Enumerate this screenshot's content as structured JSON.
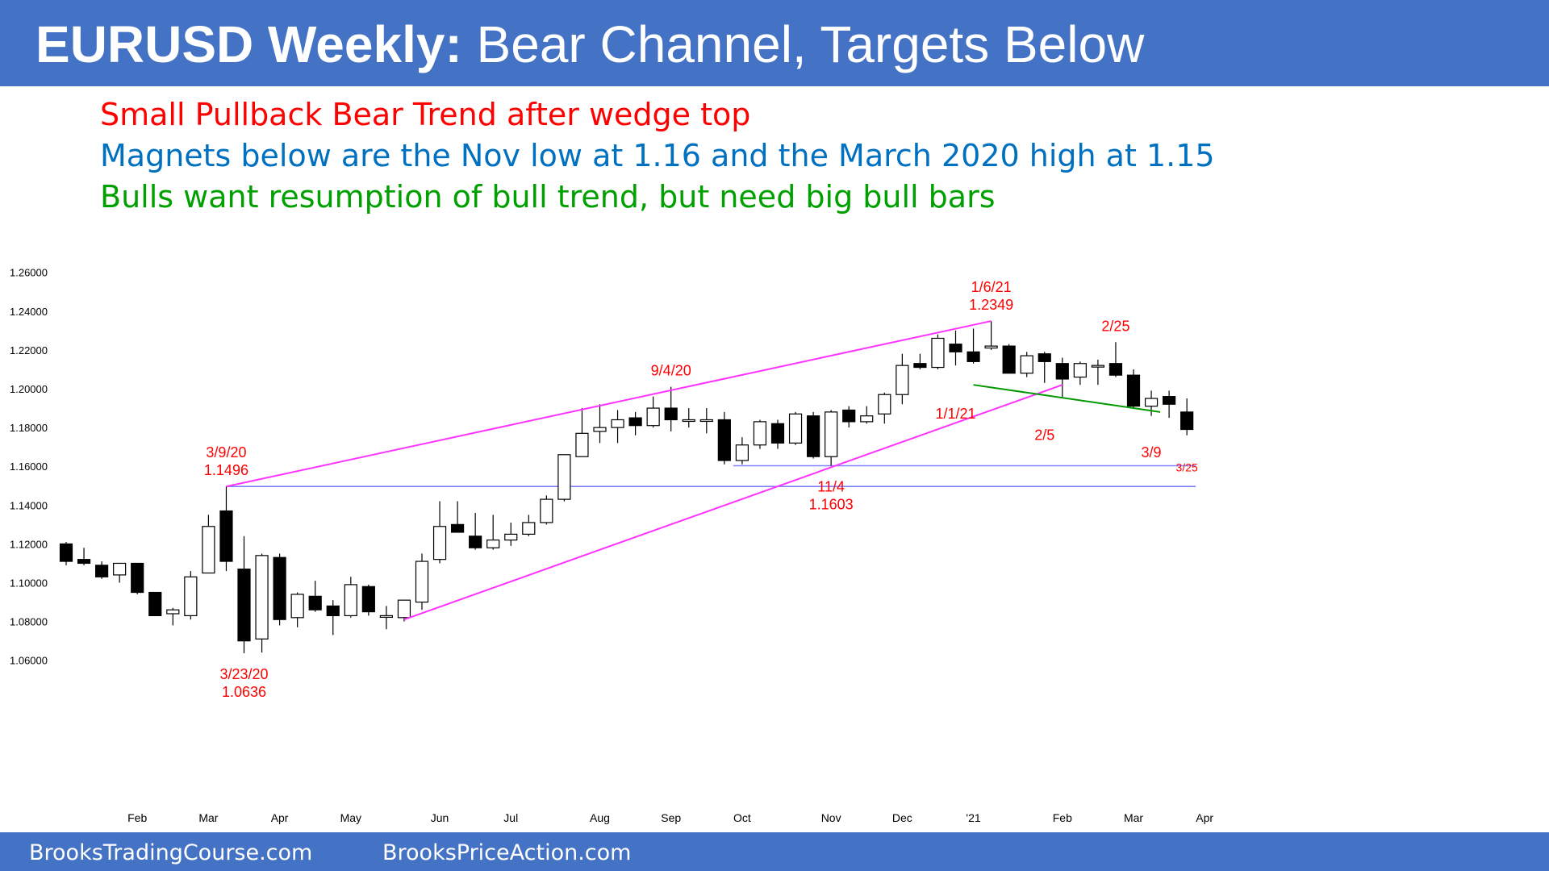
{
  "header": {
    "title_bold": "EURUSD Weekly:",
    "title_rest": " Bear Channel, Targets Below"
  },
  "subtitles": [
    {
      "text": "Small Pullback Bear Trend after wedge top",
      "color": "#ff0000"
    },
    {
      "text": "Magnets below are the Nov low at 1.16 and the March 2020 high at 1.15",
      "color": "#0070c0"
    },
    {
      "text": "Bulls want resumption of bull trend, but need big bull bars",
      "color": "#00a000"
    }
  ],
  "footer": {
    "left": "BrooksTradingCourse.com",
    "right": "BrooksPriceAction.com"
  },
  "colors": {
    "brand": "#4472c4",
    "annotation": "#ff0000",
    "wedge": "#ff33ff",
    "support": "#8080ff",
    "wedge_flag": "#009900"
  },
  "chart_data": {
    "type": "candlestick",
    "title": "",
    "xlabel": "",
    "ylabel": "",
    "ylim": [
      1.05,
      1.27
    ],
    "y_ticks": [
      "1.26000",
      "1.24000",
      "1.22000",
      "1.20000",
      "1.18000",
      "1.16000",
      "1.14000",
      "1.12000",
      "1.10000",
      "1.08000",
      "1.06000"
    ],
    "y_tick_values": [
      1.26,
      1.24,
      1.22,
      1.2,
      1.18,
      1.16,
      1.14,
      1.12,
      1.1,
      1.08,
      1.06
    ],
    "x_ticks": [
      "Feb",
      "Mar",
      "Apr",
      "May",
      "Jun",
      "Jul",
      "Aug",
      "Sep",
      "Oct",
      "Nov",
      "Dec",
      "'21",
      "Feb",
      "Mar",
      "Apr"
    ],
    "x_tick_weeks": [
      4,
      8,
      12,
      16,
      21,
      25,
      30,
      34,
      38,
      43,
      47,
      51,
      56,
      60,
      64
    ],
    "ohlc": [
      [
        1.12,
        1.121,
        1.109,
        1.111
      ],
      [
        1.112,
        1.118,
        1.109,
        1.11
      ],
      [
        1.109,
        1.111,
        1.102,
        1.103
      ],
      [
        1.104,
        1.11,
        1.1,
        1.11
      ],
      [
        1.11,
        1.11,
        1.094,
        1.095
      ],
      [
        1.095,
        1.095,
        1.083,
        1.083
      ],
      [
        1.084,
        1.087,
        1.078,
        1.086
      ],
      [
        1.083,
        1.106,
        1.081,
        1.103
      ],
      [
        1.105,
        1.135,
        1.105,
        1.129
      ],
      [
        1.137,
        1.1496,
        1.106,
        1.111
      ],
      [
        1.107,
        1.124,
        1.0636,
        1.07
      ],
      [
        1.071,
        1.115,
        1.064,
        1.114
      ],
      [
        1.113,
        1.115,
        1.078,
        1.081
      ],
      [
        1.082,
        1.095,
        1.077,
        1.094
      ],
      [
        1.093,
        1.101,
        1.085,
        1.086
      ],
      [
        1.088,
        1.091,
        1.073,
        1.083
      ],
      [
        1.083,
        1.103,
        1.082,
        1.099
      ],
      [
        1.098,
        1.099,
        1.083,
        1.085
      ],
      [
        1.083,
        1.088,
        1.076,
        1.083
      ],
      [
        1.082,
        1.09,
        1.08,
        1.091
      ],
      [
        1.09,
        1.115,
        1.086,
        1.111
      ],
      [
        1.112,
        1.142,
        1.11,
        1.129
      ],
      [
        1.13,
        1.142,
        1.126,
        1.126
      ],
      [
        1.124,
        1.136,
        1.117,
        1.118
      ],
      [
        1.118,
        1.135,
        1.117,
        1.122
      ],
      [
        1.122,
        1.131,
        1.119,
        1.125
      ],
      [
        1.125,
        1.135,
        1.124,
        1.131
      ],
      [
        1.131,
        1.145,
        1.13,
        1.143
      ],
      [
        1.143,
        1.166,
        1.142,
        1.166
      ],
      [
        1.165,
        1.19,
        1.165,
        1.177
      ],
      [
        1.178,
        1.192,
        1.172,
        1.18
      ],
      [
        1.18,
        1.189,
        1.172,
        1.184
      ],
      [
        1.185,
        1.188,
        1.176,
        1.181
      ],
      [
        1.181,
        1.196,
        1.18,
        1.19
      ],
      [
        1.19,
        1.201,
        1.178,
        1.184
      ],
      [
        1.184,
        1.19,
        1.18,
        1.184
      ],
      [
        1.184,
        1.19,
        1.177,
        1.184
      ],
      [
        1.184,
        1.188,
        1.161,
        1.163
      ],
      [
        1.163,
        1.175,
        1.161,
        1.171
      ],
      [
        1.171,
        1.184,
        1.169,
        1.183
      ],
      [
        1.182,
        1.184,
        1.169,
        1.172
      ],
      [
        1.172,
        1.188,
        1.171,
        1.187
      ],
      [
        1.186,
        1.188,
        1.164,
        1.165
      ],
      [
        1.165,
        1.189,
        1.1603,
        1.188
      ],
      [
        1.189,
        1.191,
        1.18,
        1.183
      ],
      [
        1.183,
        1.191,
        1.182,
        1.186
      ],
      [
        1.187,
        1.198,
        1.182,
        1.197
      ],
      [
        1.197,
        1.218,
        1.192,
        1.212
      ],
      [
        1.213,
        1.218,
        1.21,
        1.211
      ],
      [
        1.211,
        1.228,
        1.21,
        1.226
      ],
      [
        1.223,
        1.23,
        1.212,
        1.219
      ],
      [
        1.219,
        1.231,
        1.213,
        1.214
      ],
      [
        1.221,
        1.2349,
        1.22,
        1.222
      ],
      [
        1.222,
        1.223,
        1.208,
        1.208
      ],
      [
        1.208,
        1.219,
        1.206,
        1.217
      ],
      [
        1.218,
        1.219,
        1.203,
        1.214
      ],
      [
        1.213,
        1.216,
        1.195,
        1.205
      ],
      [
        1.206,
        1.214,
        1.202,
        1.213
      ],
      [
        1.212,
        1.215,
        1.202,
        1.212
      ],
      [
        1.213,
        1.224,
        1.206,
        1.207
      ],
      [
        1.207,
        1.21,
        1.19,
        1.191
      ],
      [
        1.191,
        1.199,
        1.186,
        1.195
      ],
      [
        1.196,
        1.199,
        1.185,
        1.192
      ],
      [
        1.188,
        1.195,
        1.176,
        1.179
      ]
    ],
    "annotations": [
      {
        "lines": [
          "3/9/20",
          "1.1496"
        ],
        "week": 9,
        "price": 1.1496,
        "anchor": "above"
      },
      {
        "lines": [
          "3/23/20",
          "1.0636"
        ],
        "week": 10,
        "price": 1.0636,
        "anchor": "below"
      },
      {
        "lines": [
          "9/4/20"
        ],
        "week": 34,
        "price": 1.201,
        "anchor": "above"
      },
      {
        "lines": [
          "11/4",
          "1.1603"
        ],
        "week": 43,
        "price": 1.1603,
        "anchor": "below"
      },
      {
        "lines": [
          "1/6/21",
          "1.2349"
        ],
        "week": 52,
        "price": 1.2349,
        "anchor": "above"
      },
      {
        "lines": [
          "1/1/21"
        ],
        "week": 50,
        "price": 1.198,
        "anchor": "below"
      },
      {
        "lines": [
          "2/5"
        ],
        "week": 55,
        "price": 1.187,
        "anchor": "below"
      },
      {
        "lines": [
          "2/25"
        ],
        "week": 59,
        "price": 1.224,
        "anchor": "above"
      },
      {
        "lines": [
          "3/9"
        ],
        "week": 61,
        "price": 1.178,
        "anchor": "below"
      },
      {
        "lines": [
          "3/25"
        ],
        "week": 63,
        "price": 1.169,
        "anchor": "below",
        "small": true
      }
    ],
    "trendlines": [
      {
        "name": "wedge-upper",
        "color": "wedge",
        "from": [
          9,
          1.1496
        ],
        "to": [
          52,
          1.2349
        ]
      },
      {
        "name": "wedge-lower",
        "color": "wedge",
        "from": [
          19,
          1.081
        ],
        "to": [
          56,
          1.202
        ]
      },
      {
        "name": "bear-flag-line",
        "color": "wedge_flag",
        "from": [
          51,
          1.202
        ],
        "to": [
          61.5,
          1.188
        ]
      }
    ],
    "hlines": [
      {
        "name": "nov-low",
        "price": 1.1603,
        "from": 37.5,
        "to": 63.5
      },
      {
        "name": "march-2020-high",
        "price": 1.1496,
        "from": 9,
        "to": 63.5
      }
    ]
  }
}
